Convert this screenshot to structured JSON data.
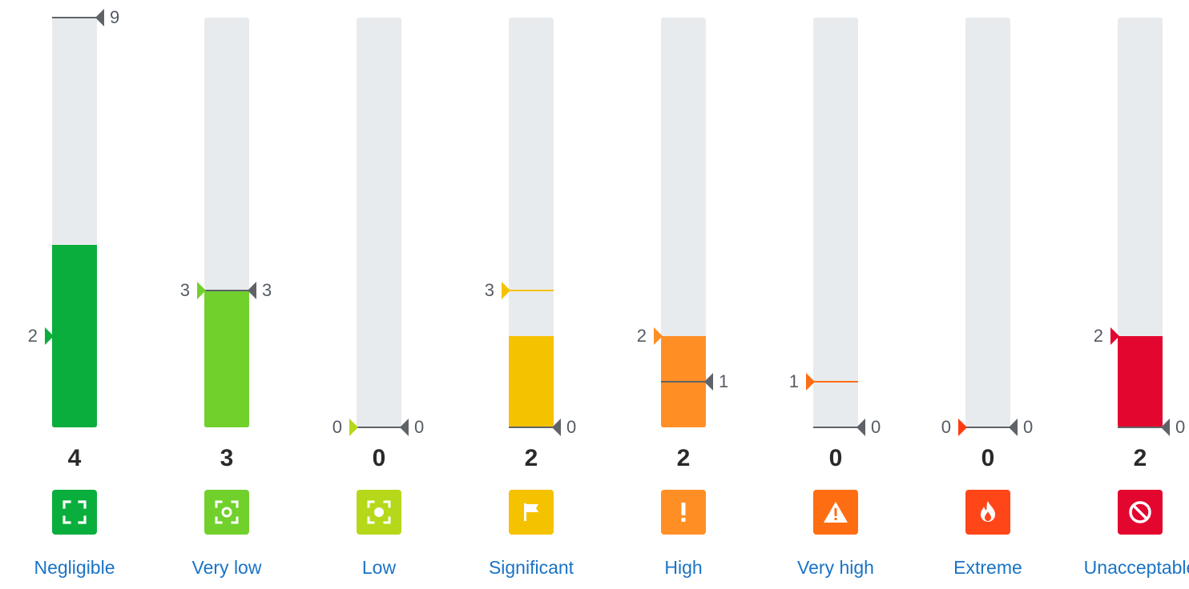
{
  "chart_data": {
    "type": "bar",
    "ylim": [
      0,
      9
    ],
    "categories": [
      {
        "label": "Negligible",
        "count": "4",
        "value": 4,
        "color": "#0aae3c",
        "target": 2,
        "target_color": "#0aae3c",
        "previous": 9,
        "icon": "focus-frame-icon"
      },
      {
        "label": "Very low",
        "count": "3",
        "value": 3,
        "color": "#72d02d",
        "target": 3,
        "target_color": "#72d02d",
        "previous": 3,
        "icon": "focus-ring-icon"
      },
      {
        "label": "Low",
        "count": "0",
        "value": 0,
        "color": "#b5d81a",
        "target": 0,
        "target_color": "#b5d81a",
        "previous": 0,
        "icon": "focus-dot-icon"
      },
      {
        "label": "Significant",
        "count": "2",
        "value": 2,
        "color": "#f5c200",
        "target": 3,
        "target_color": "#f5c200",
        "previous": 0,
        "icon": "flag-icon"
      },
      {
        "label": "High",
        "count": "2",
        "value": 2,
        "color": "#ff8f25",
        "target": 2,
        "target_color": "#ff8f25",
        "previous": 1,
        "icon": "exclamation-icon"
      },
      {
        "label": "Very high",
        "count": "0",
        "value": 0,
        "color": "#ff6d12",
        "target": 1,
        "target_color": "#ff6d12",
        "previous": 0,
        "icon": "warning-triangle-icon"
      },
      {
        "label": "Extreme",
        "count": "0",
        "value": 0,
        "color": "#ff4619",
        "target": 0,
        "target_color": "#ff3b12",
        "previous": 0,
        "icon": "fire-icon"
      },
      {
        "label": "Unacceptable",
        "count": "2",
        "value": 2,
        "color": "#e3062f",
        "target": 2,
        "target_color": "#e3062f",
        "previous": 0,
        "icon": "prohibited-icon"
      }
    ],
    "marker_labels": {
      "target": [
        "2",
        "3",
        "0",
        "3",
        "2",
        "1",
        "0",
        "2"
      ],
      "previous": [
        "9",
        "3",
        "0",
        "0",
        "1",
        "0",
        "0",
        "0"
      ]
    }
  },
  "colors": {
    "track": "#e8ebee",
    "marker_gray": "#5f6368",
    "label_link": "#1a73c6"
  }
}
